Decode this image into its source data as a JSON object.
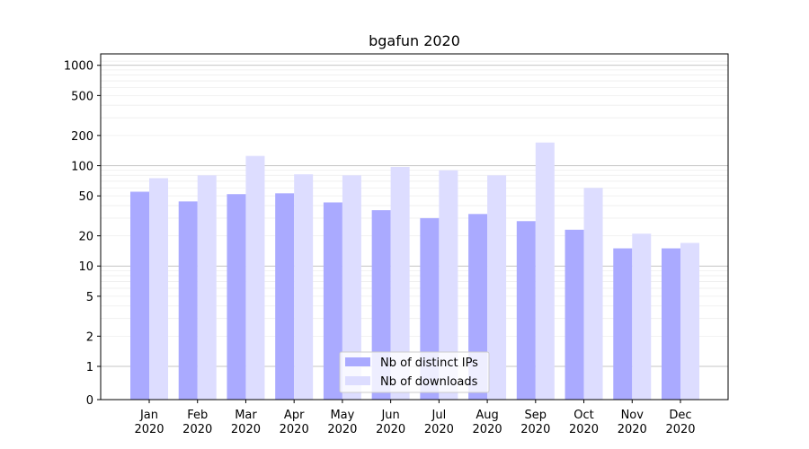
{
  "chart_data": {
    "type": "bar",
    "title": "bgafun 2020",
    "categories": [
      [
        "Jan",
        "2020"
      ],
      [
        "Feb",
        "2020"
      ],
      [
        "Mar",
        "2020"
      ],
      [
        "Apr",
        "2020"
      ],
      [
        "May",
        "2020"
      ],
      [
        "Jun",
        "2020"
      ],
      [
        "Jul",
        "2020"
      ],
      [
        "Aug",
        "2020"
      ],
      [
        "Sep",
        "2020"
      ],
      [
        "Oct",
        "2020"
      ],
      [
        "Nov",
        "2020"
      ],
      [
        "Dec",
        "2020"
      ]
    ],
    "series": [
      {
        "name": "Nb of distinct IPs",
        "color": "#aaaaff",
        "values": [
          55,
          44,
          52,
          53,
          43,
          36,
          30,
          33,
          28,
          23,
          15,
          15
        ]
      },
      {
        "name": "Nb of downloads",
        "color": "#ddddff",
        "values": [
          75,
          80,
          125,
          82,
          80,
          97,
          90,
          80,
          170,
          60,
          21,
          17
        ]
      }
    ],
    "yscale": "symlog",
    "ylim": [
      0,
      1300
    ],
    "yticks": [
      0,
      1,
      2,
      5,
      10,
      20,
      50,
      100,
      200,
      500,
      1000
    ],
    "ytick_labels": [
      "0",
      "1",
      "2",
      "5",
      "10",
      "20",
      "50",
      "100",
      "200",
      "500",
      "1000"
    ],
    "grid": true,
    "legend_position": "lower-center"
  }
}
